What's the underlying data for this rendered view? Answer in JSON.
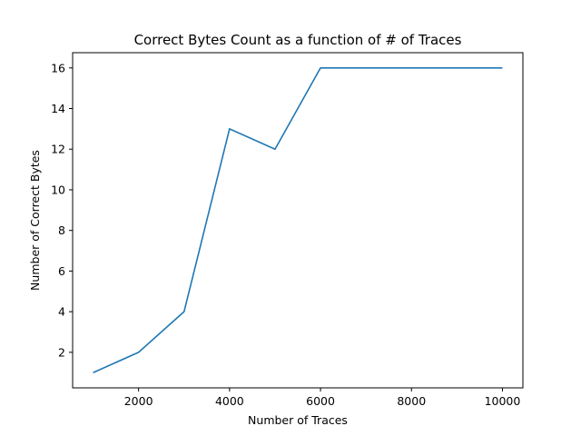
{
  "chart_data": {
    "type": "line",
    "title": "Correct Bytes Count as a function of # of Traces",
    "xlabel": "Number of Traces",
    "ylabel": "Number of Correct Bytes",
    "xlim": [
      550,
      10450
    ],
    "ylim": [
      0.25,
      16.75
    ],
    "xticks": [
      2000,
      4000,
      6000,
      8000,
      10000
    ],
    "yticks": [
      2,
      4,
      6,
      8,
      10,
      12,
      14,
      16
    ],
    "grid": false,
    "legend": "none",
    "series": [
      {
        "color": "#1f77b4",
        "x": [
          1000,
          2000,
          3000,
          4000,
          5000,
          6000,
          7000,
          8000,
          9000,
          10000
        ],
        "y": [
          1,
          2,
          4,
          13,
          12,
          16,
          16,
          16,
          16,
          16
        ]
      }
    ]
  }
}
